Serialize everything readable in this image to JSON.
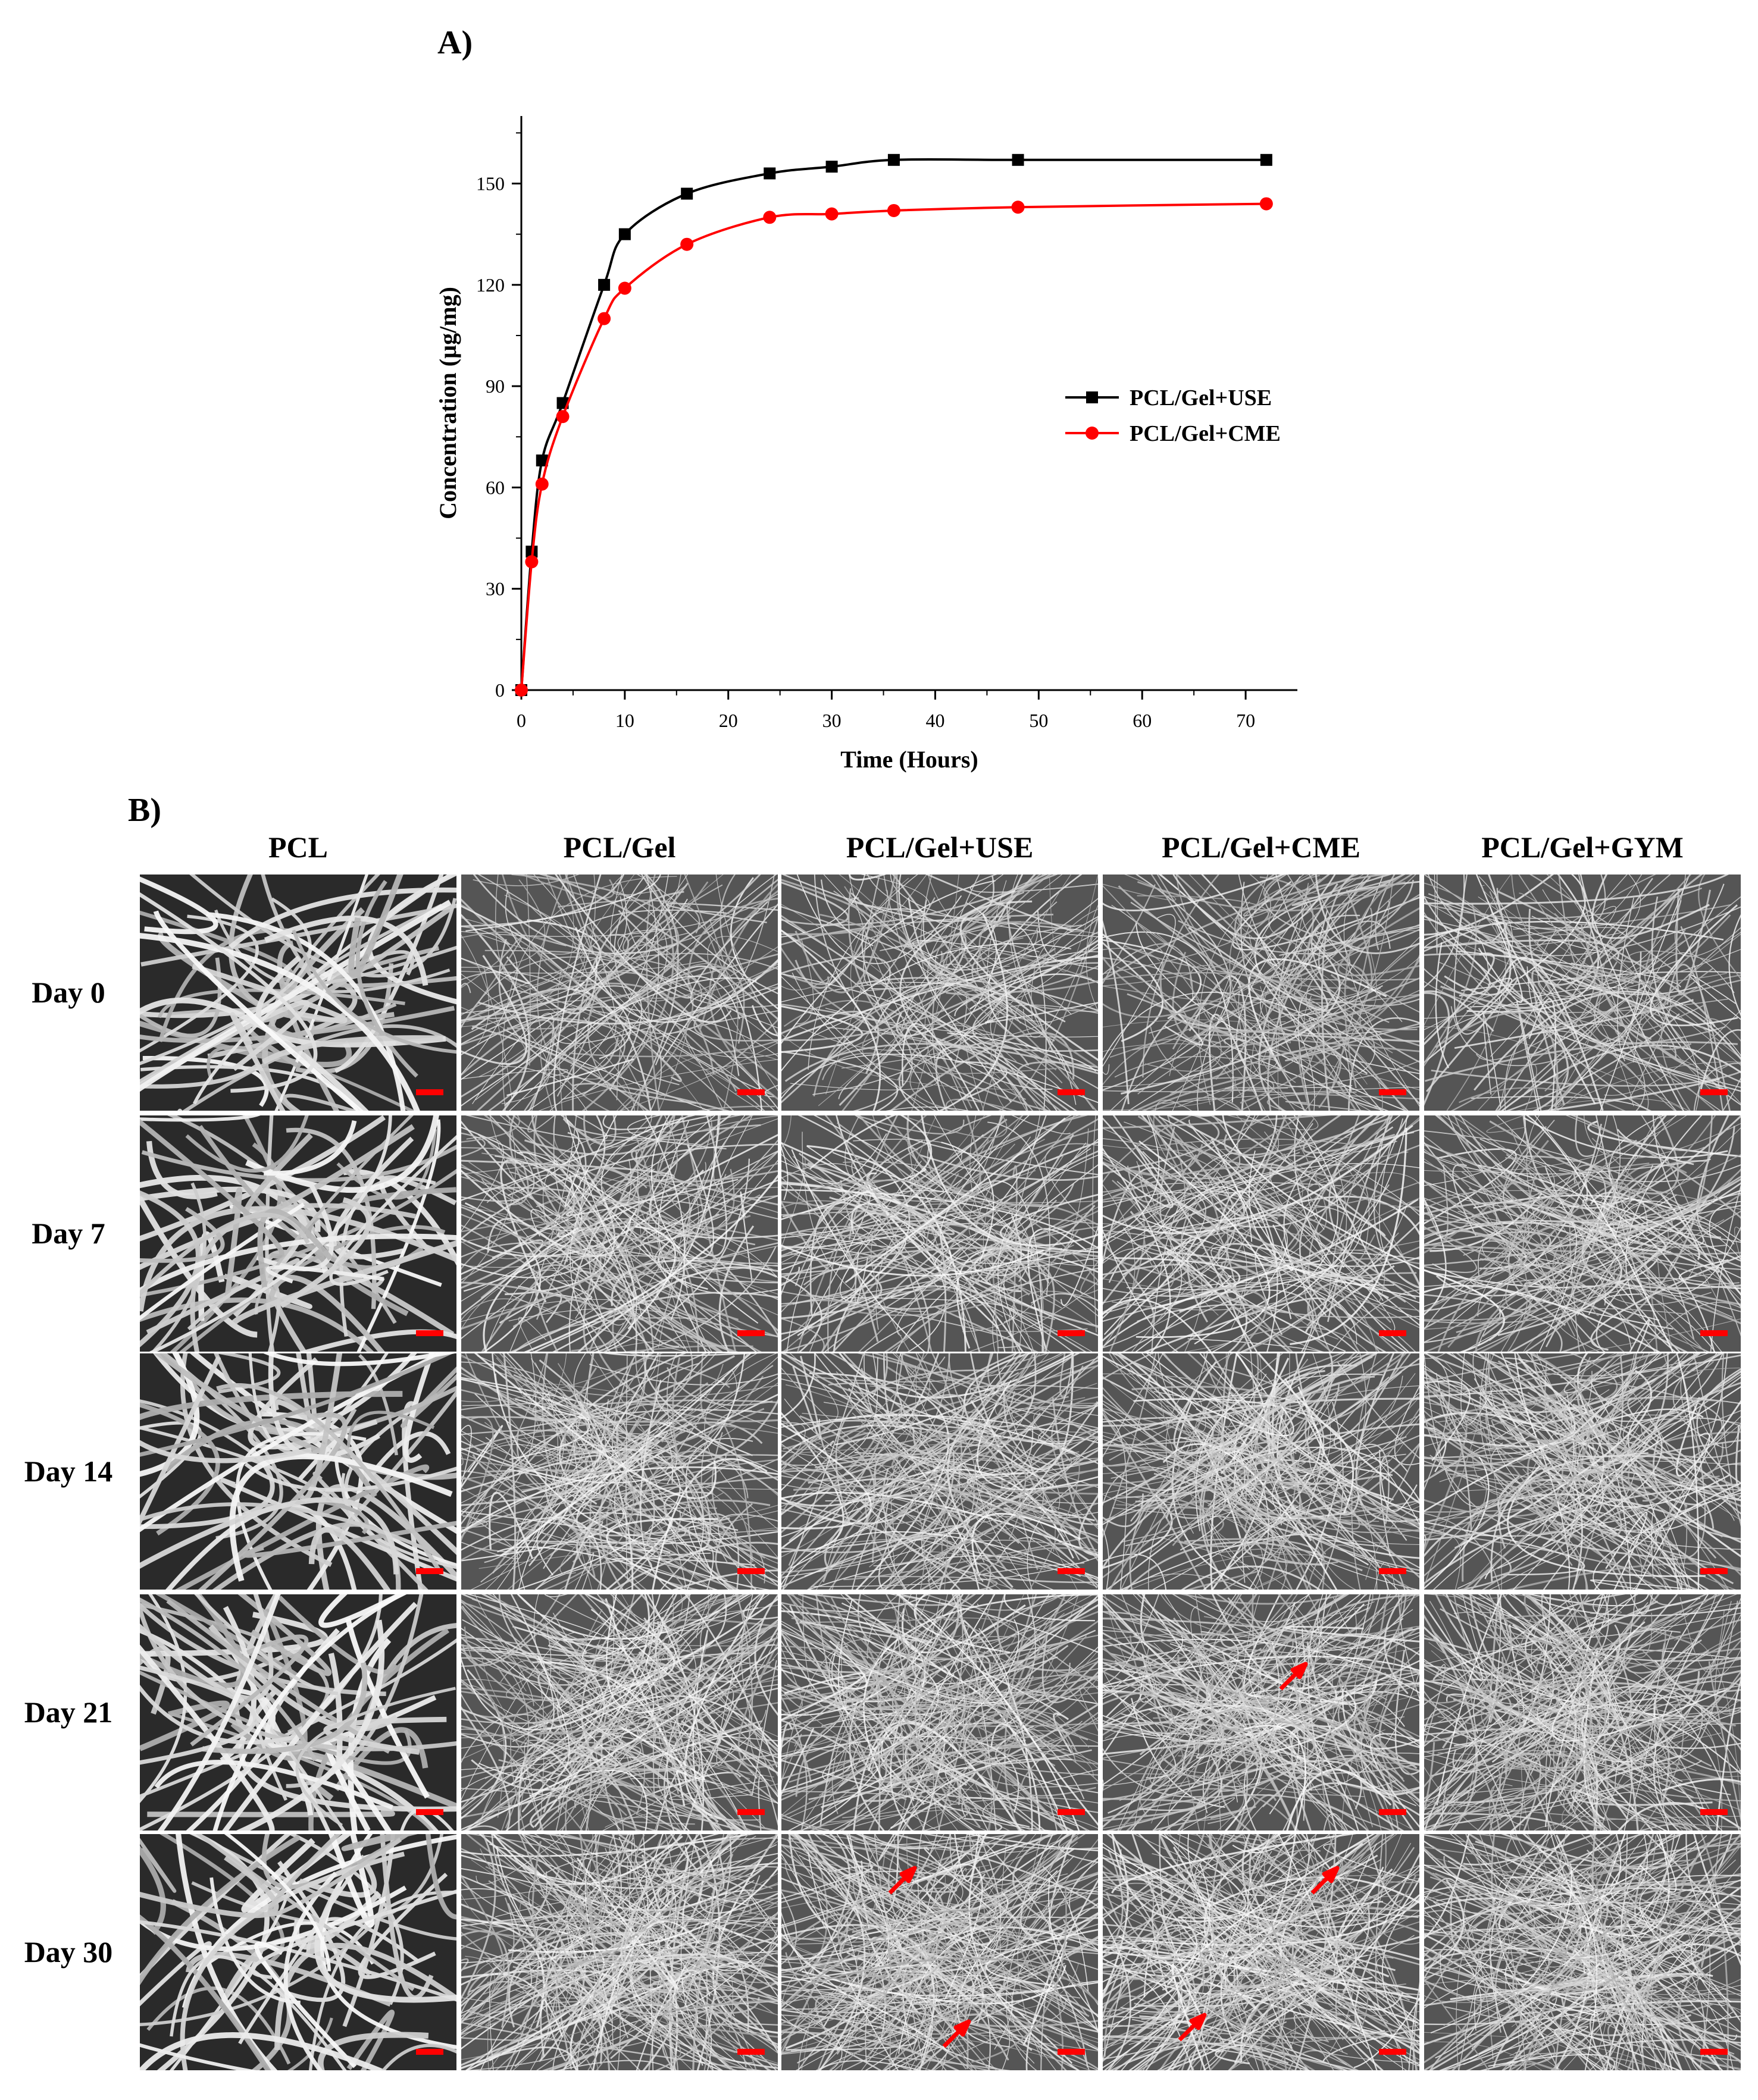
{
  "panel_a_label": "A)",
  "panel_b_label": "B)",
  "chart_data": {
    "type": "line",
    "title": "",
    "xlabel": "Time (Hours)",
    "ylabel": "Concentration (µg/mg)",
    "xlim": [
      0,
      75
    ],
    "ylim": [
      0,
      170
    ],
    "xticks": [
      0,
      10,
      20,
      30,
      40,
      50,
      60,
      70
    ],
    "yticks": [
      0,
      30,
      60,
      90,
      120,
      150
    ],
    "legend_position": "right",
    "grid": false,
    "series": [
      {
        "name": "PCL/Gel+USE",
        "color": "#000000",
        "marker": "square",
        "x": [
          0,
          1,
          2,
          4,
          8,
          10,
          16,
          24,
          30,
          36,
          48,
          72
        ],
        "y": [
          0,
          41,
          68,
          85,
          120,
          135,
          147,
          153,
          155,
          157,
          157,
          157
        ]
      },
      {
        "name": "PCL/Gel+CME",
        "color": "#ff0000",
        "marker": "circle",
        "x": [
          0,
          1,
          2,
          4,
          8,
          10,
          16,
          24,
          30,
          36,
          48,
          72
        ],
        "y": [
          0,
          38,
          61,
          81,
          110,
          119,
          132,
          140,
          141,
          142,
          143,
          144
        ]
      }
    ]
  },
  "sem_grid": {
    "columns": [
      "PCL",
      "PCL/Gel",
      "PCL/Gel+USE",
      "PCL/Gel+CME",
      "PCL/Gel+GYM"
    ],
    "rows": [
      "Day 0",
      "Day 7",
      "Day 14",
      "Day 21",
      "Day 30"
    ],
    "scale_bar_color": "#ff0000",
    "arrow_color": "#ff0000",
    "arrows": [
      {
        "row": 3,
        "col": 3
      },
      {
        "row": 4,
        "col": 2
      },
      {
        "row": 4,
        "col": 2
      },
      {
        "row": 4,
        "col": 3
      },
      {
        "row": 4,
        "col": 3
      }
    ]
  }
}
